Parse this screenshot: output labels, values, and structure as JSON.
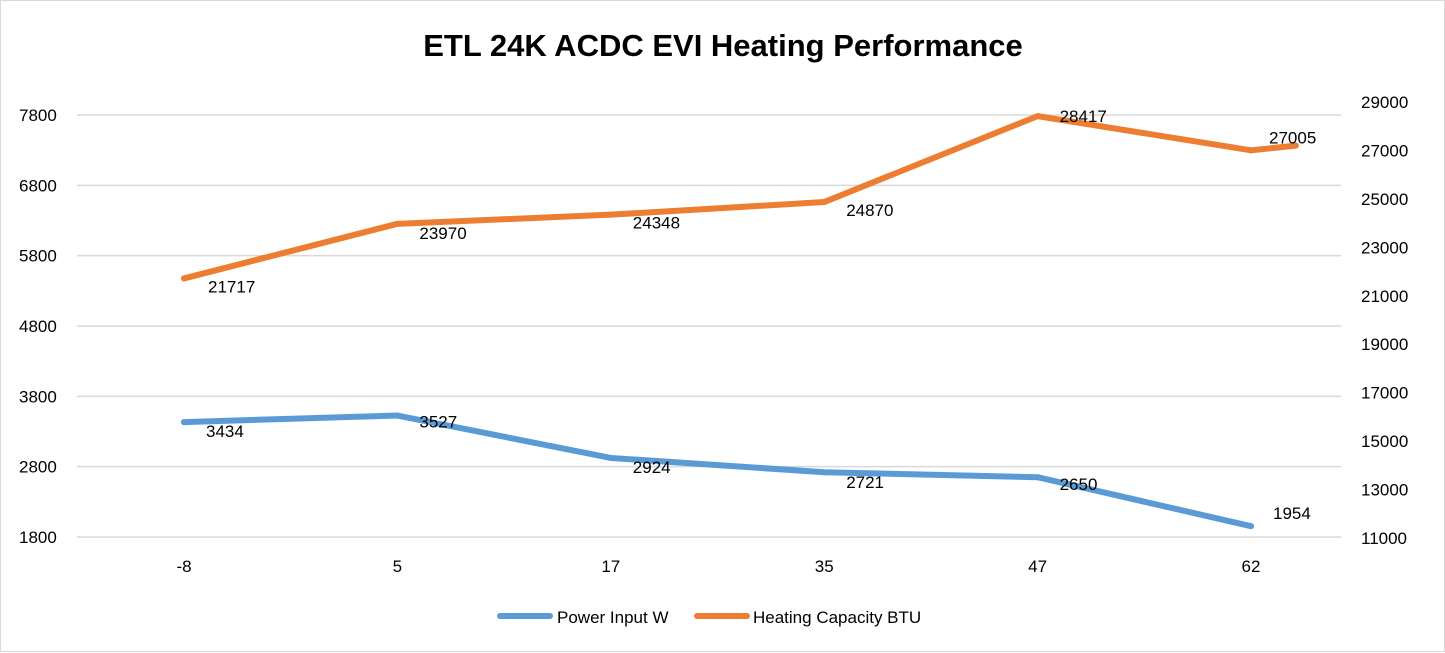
{
  "chart_data": {
    "type": "line",
    "title": "ETL 24K ACDC EVI Heating Performance",
    "categories": [
      "-8",
      "5",
      "17",
      "35",
      "47",
      "62"
    ],
    "y_left": {
      "min": 1800,
      "max": 7800,
      "ticks": [
        1800,
        2800,
        3800,
        4800,
        5800,
        6800,
        7800
      ]
    },
    "y_right": {
      "min": 11000,
      "max": 29000,
      "ticks": [
        11000,
        13000,
        15000,
        17000,
        19000,
        21000,
        23000,
        25000,
        27000,
        29000
      ]
    },
    "grid": true,
    "legend": "bottom",
    "series": [
      {
        "name": "Power Input W",
        "axis": "left",
        "color": "#5b9bd5",
        "x": [
          0,
          1,
          2,
          3,
          4,
          5
        ],
        "values": [
          3434,
          3527,
          2924,
          2721,
          2650,
          1954
        ],
        "labels": [
          "3434",
          "3527",
          "2924",
          "2721",
          "2650",
          "1954"
        ]
      },
      {
        "name": "Heating Capacity BTU",
        "axis": "right",
        "color": "#ed7d31",
        "x": [
          0,
          1,
          2,
          3,
          4,
          5,
          5.21
        ],
        "values": [
          21717,
          23970,
          24348,
          24870,
          28417,
          27005,
          27200
        ],
        "labels": [
          "21717",
          "23970",
          "24348",
          "24870",
          "28417",
          "27005",
          ""
        ]
      }
    ]
  }
}
